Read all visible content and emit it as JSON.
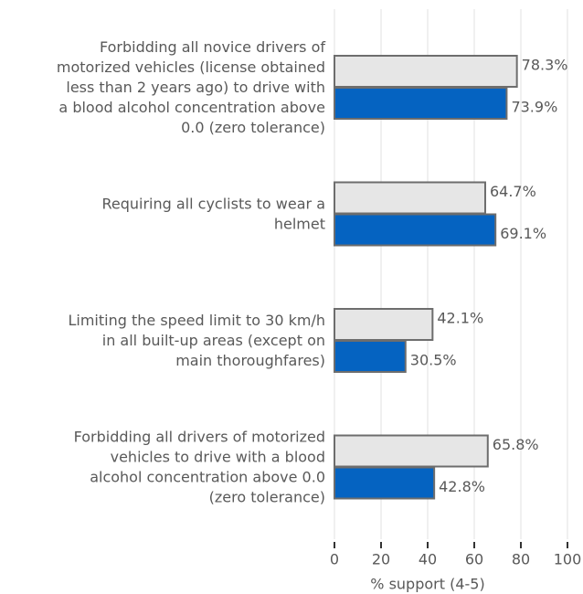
{
  "chart_data": {
    "type": "barh",
    "categories": [
      "Forbidding all novice drivers of\nmotorized vehicles (license obtained\nless than 2 years ago) to drive with\na blood alcohol concentration above\n0.0 (zero tolerance)",
      "Requiring all cyclists to wear a\nhelmet",
      "Limiting the speed limit to 30 km/h\nin all built-up areas (except on\nmain thoroughfares)",
      "Forbidding all drivers of motorized\nvehicles to drive with a blood\nalcohol concentration above 0.0\n(zero tolerance)"
    ],
    "series": [
      {
        "color": "#e6e6e6",
        "values": [
          78.3,
          64.7,
          42.1,
          65.8
        ],
        "value_labels": [
          "78.3%",
          "64.7%",
          "42.1%",
          "65.8%"
        ]
      },
      {
        "color": "#0563c1",
        "values": [
          73.9,
          69.1,
          30.5,
          42.8
        ],
        "value_labels": [
          "73.9%",
          "69.1%",
          "30.5%",
          "42.8%"
        ]
      }
    ],
    "xlabel": "% support (4-5)",
    "xlim": [
      0,
      100
    ],
    "xticks": [
      0,
      20,
      40,
      60,
      80,
      100
    ],
    "grid": true
  }
}
